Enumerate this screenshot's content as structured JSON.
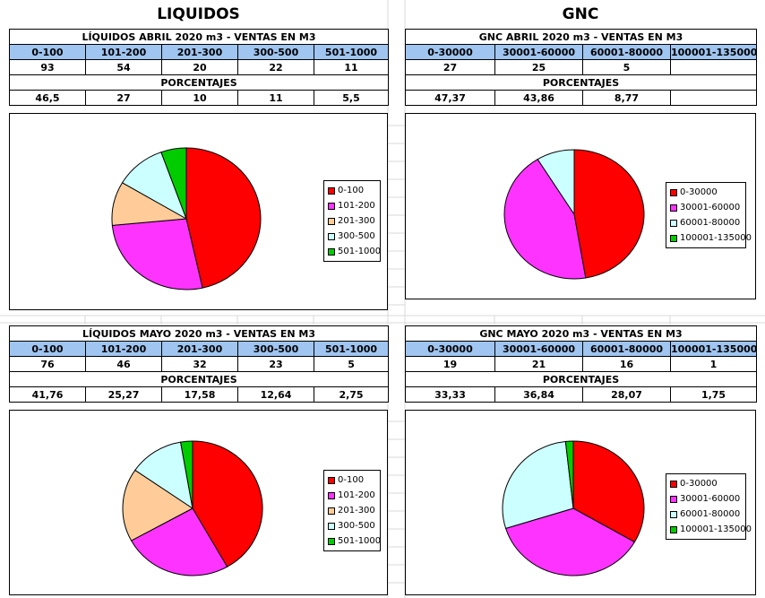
{
  "sections": {
    "liquidos_title": "LIQUIDOS",
    "gnc_title": "GNC"
  },
  "tables": {
    "liq_abril": {
      "title": "LÍQUIDOS ABRIL 2020 m3 - VENTAS EN M3",
      "headers": [
        "0-100",
        "101-200",
        "201-300",
        "300-500",
        "501-1000"
      ],
      "values": [
        "93",
        "54",
        "20",
        "22",
        "11"
      ],
      "pct_label": "PORCENTAJES",
      "percentages": [
        "46,5",
        "27",
        "10",
        "11",
        "5,5"
      ]
    },
    "gnc_abril": {
      "title": "GNC ABRIL 2020 m3 - VENTAS EN M3",
      "headers": [
        "0-30000",
        "30001-60000",
        "60001-80000",
        "100001-135000"
      ],
      "values": [
        "27",
        "25",
        "5",
        ""
      ],
      "pct_label": "PORCENTAJES",
      "percentages": [
        "47,37",
        "43,86",
        "8,77",
        ""
      ]
    },
    "liq_mayo": {
      "title": "LÍQUIDOS MAYO 2020 m3 - VENTAS EN M3",
      "headers": [
        "0-100",
        "101-200",
        "201-300",
        "300-500",
        "501-1000"
      ],
      "values": [
        "76",
        "46",
        "32",
        "23",
        "5"
      ],
      "pct_label": "PORCENTAJES",
      "percentages": [
        "41,76",
        "25,27",
        "17,58",
        "12,64",
        "2,75"
      ]
    },
    "gnc_mayo": {
      "title": "GNC MAYO  2020 m3 - VENTAS EN M3",
      "headers": [
        "0-30000",
        "30001-60000",
        "60001-80000",
        "100001-135000"
      ],
      "values": [
        "19",
        "21",
        "16",
        "1"
      ],
      "pct_label": "PORCENTAJES",
      "percentages": [
        "33,33",
        "36,84",
        "28,07",
        "1,75"
      ]
    }
  },
  "colors": {
    "c1": "#ff0000",
    "c2": "#ff33ff",
    "c3": "#ffcc99",
    "c4": "#ccffff",
    "c5": "#00cc00",
    "header_bg": "#9fc5f0"
  },
  "chart_data": [
    {
      "type": "pie",
      "title": "LÍQUIDOS ABRIL 2020 m3 - VENTAS EN M3",
      "labels": [
        "0-100",
        "101-200",
        "201-300",
        "300-500",
        "501-1000"
      ],
      "values": [
        46.5,
        27,
        10,
        11,
        5.5
      ],
      "colors": [
        "#ff0000",
        "#ff33ff",
        "#ffcc99",
        "#ccffff",
        "#00cc00"
      ]
    },
    {
      "type": "pie",
      "title": "GNC ABRIL 2020 m3 - VENTAS EN M3",
      "labels": [
        "0-30000",
        "30001-60000",
        "60001-80000",
        "100001-135000"
      ],
      "values": [
        47.37,
        43.86,
        8.77,
        0
      ],
      "colors": [
        "#ff0000",
        "#ff33ff",
        "#ccffff",
        "#00cc00"
      ]
    },
    {
      "type": "pie",
      "title": "LÍQUIDOS MAYO 2020 m3 - VENTAS EN M3",
      "labels": [
        "0-100",
        "101-200",
        "201-300",
        "300-500",
        "501-1000"
      ],
      "values": [
        41.76,
        25.27,
        17.58,
        12.64,
        2.75
      ],
      "colors": [
        "#ff0000",
        "#ff33ff",
        "#ffcc99",
        "#ccffff",
        "#00cc00"
      ]
    },
    {
      "type": "pie",
      "title": "GNC MAYO 2020 m3 - VENTAS EN M3",
      "labels": [
        "0-30000",
        "30001-60000",
        "60001-80000",
        "100001-135000"
      ],
      "values": [
        33.33,
        36.84,
        28.07,
        1.75
      ],
      "colors": [
        "#ff0000",
        "#ff33ff",
        "#ccffff",
        "#00cc00"
      ]
    }
  ]
}
